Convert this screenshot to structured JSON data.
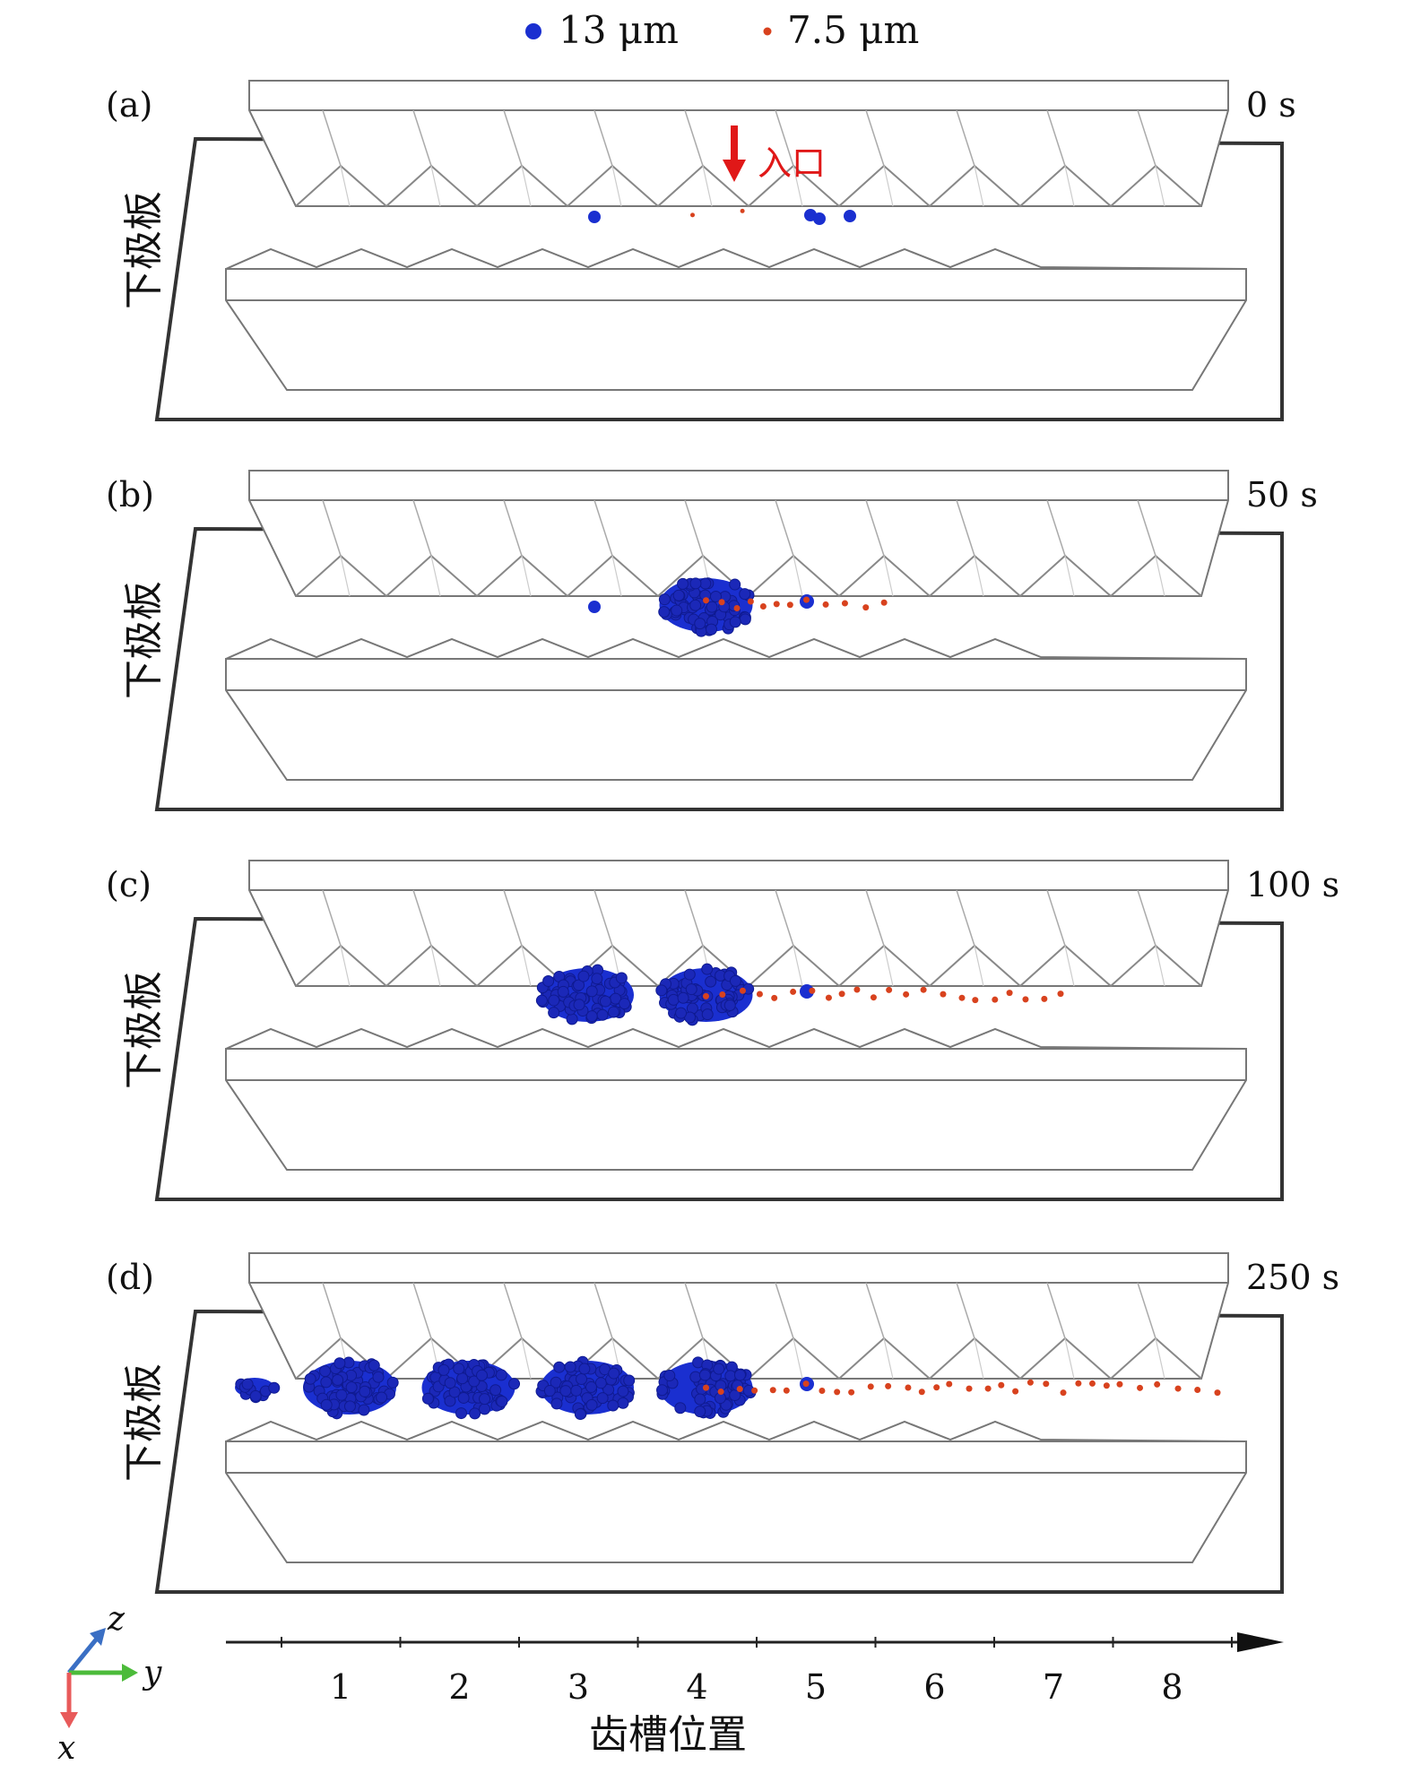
{
  "colors": {
    "large_particle": "#1a2fd0",
    "small_particle": "#d8421e",
    "inlet_arrow": "#e01818",
    "frame": "#333333",
    "axis_z": "#3a6fc4",
    "axis_y": "#4cbb3a",
    "axis_x": "#e85a5a"
  },
  "legend": [
    {
      "label": "13 μm",
      "marker": "large-dot"
    },
    {
      "label": "7.5 μm",
      "marker": "small-dot"
    }
  ],
  "inlet_label": "入口",
  "panels": [
    {
      "label": "(a)",
      "time": "0 s",
      "side_label": "下极板",
      "large_clusters": [],
      "small_tail_to_slot": 4.4
    },
    {
      "label": "(b)",
      "time": "50 s",
      "side_label": "下极板",
      "large_clusters": [
        4
      ],
      "small_tail_to_slot": 5.6
    },
    {
      "label": "(c)",
      "time": "100 s",
      "side_label": "下极板",
      "large_clusters": [
        3,
        4
      ],
      "small_tail_to_slot": 7.1
    },
    {
      "label": "(d)",
      "time": "250 s",
      "side_label": "下极板",
      "large_clusters": [
        0.2,
        1,
        2,
        3,
        4
      ],
      "small_tail_to_slot": 8.5
    }
  ],
  "x_axis": {
    "title": "齿槽位置",
    "tick_labels": [
      "1",
      "2",
      "3",
      "4",
      "5",
      "6",
      "7",
      "8"
    ]
  },
  "coordinate_axes": {
    "z": "z",
    "y": "y",
    "x": "x"
  }
}
